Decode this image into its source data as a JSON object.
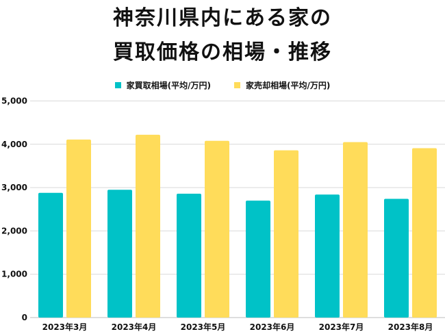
{
  "chart_data": {
    "type": "bar",
    "title_lines": [
      "神奈川県内にある家の",
      "買取価格の相場・推移"
    ],
    "categories": [
      "2023年3月",
      "2023年4月",
      "2023年5月",
      "2023年6月",
      "2023年7月",
      "2023年8月"
    ],
    "series": [
      {
        "name": "家買取相場(平均/万円)",
        "color": "#00C2C7",
        "values": [
          2880,
          2950,
          2860,
          2700,
          2840,
          2740
        ]
      },
      {
        "name": "家売却相場(平均/万円)",
        "color": "#FFDC5A",
        "values": [
          4110,
          4220,
          4080,
          3860,
          4050,
          3910
        ]
      }
    ],
    "yticks": [
      "0",
      "1,000",
      "2,000",
      "3,000",
      "4,000",
      "5,000"
    ],
    "ylim": [
      0,
      5000
    ],
    "grid": true,
    "legend_position": "top-center",
    "gridline_color": "#D9D9D9"
  }
}
